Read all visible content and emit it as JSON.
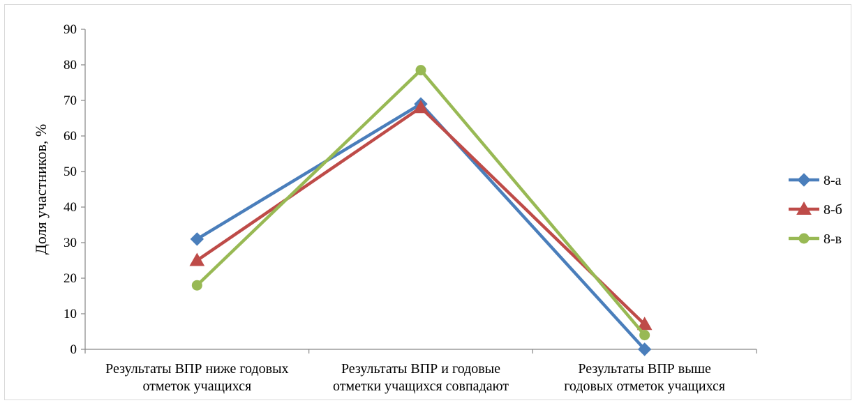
{
  "chart_data": {
    "type": "line",
    "title": "",
    "xlabel": "",
    "ylabel": "Доля участников, %",
    "ylim": [
      0,
      90
    ],
    "yticks": [
      0,
      10,
      20,
      30,
      40,
      50,
      60,
      70,
      80,
      90
    ],
    "grid": false,
    "legend_position": "right",
    "categories": [
      [
        "Результаты ВПР ниже годовых",
        "отметок учащихся"
      ],
      [
        "Результаты ВПР и годовые",
        "отметки учащихся совпадают"
      ],
      [
        "Результаты ВПР выше",
        "годовых отметок учащихся"
      ]
    ],
    "series": [
      {
        "name": "8-а",
        "values": [
          31,
          69,
          0
        ],
        "color": "#4a7ebb",
        "marker": "diamond"
      },
      {
        "name": "8-б",
        "values": [
          25,
          68,
          7
        ],
        "color": "#be4b48",
        "marker": "triangle"
      },
      {
        "name": "8-в",
        "values": [
          18,
          78.5,
          4
        ],
        "color": "#98b954",
        "marker": "circle"
      }
    ]
  }
}
